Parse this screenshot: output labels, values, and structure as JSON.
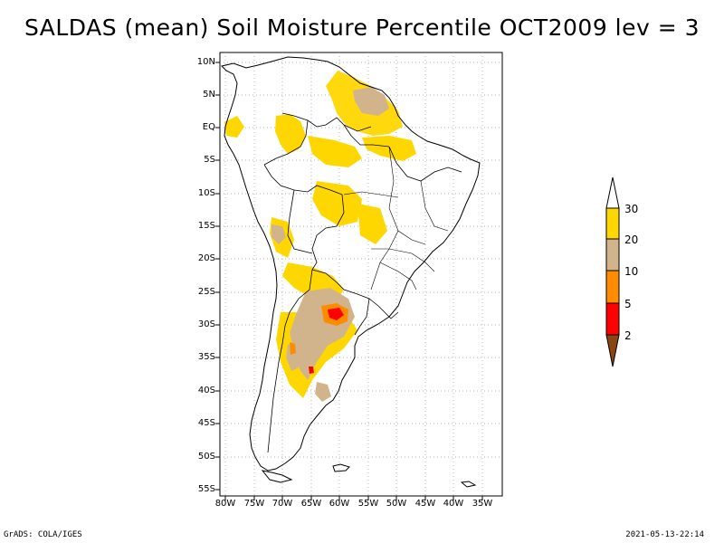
{
  "title": "SALDAS (mean) Soil Moisture Percentile OCT2009 lev = 3",
  "credit_left": "GrADS: COLA/IGES",
  "credit_right": "2021-05-13-22:14",
  "lat_labels": [
    "10N",
    "5N",
    "EQ",
    "5S",
    "10S",
    "15S",
    "20S",
    "25S",
    "30S",
    "35S",
    "40S",
    "45S",
    "50S",
    "55S"
  ],
  "lon_labels": [
    "80W",
    "75W",
    "70W",
    "65W",
    "60W",
    "55W",
    "50W",
    "45W",
    "40W",
    "35W"
  ],
  "colorbar": {
    "levels": [
      "2",
      "5",
      "10",
      "20",
      "30"
    ],
    "colors": [
      "#8b4513",
      "#ff0000",
      "#ff8c00",
      "#d2b48c",
      "#ffd700",
      "#ffffff"
    ]
  },
  "palette": {
    "yellow": "#ffd700",
    "tan": "#d2b48c",
    "orange": "#ff8c00",
    "red": "#ff0000"
  }
}
